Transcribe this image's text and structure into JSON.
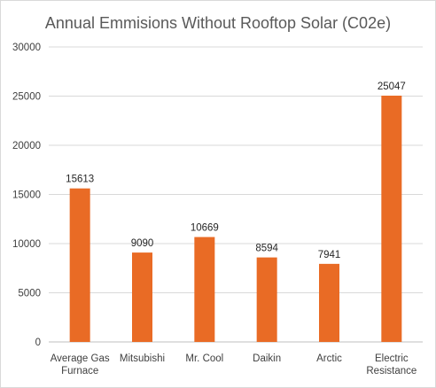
{
  "chart_data": {
    "type": "bar",
    "title": "Annual Emmisions Without Rooftop Solar (C02e)",
    "categories": [
      [
        "Average Gas",
        "Furnace"
      ],
      [
        "Mitsubishi"
      ],
      [
        "Mr. Cool"
      ],
      [
        "Daikin"
      ],
      [
        "Arctic"
      ],
      [
        "Electric",
        "Resistance"
      ]
    ],
    "values": [
      15613,
      9090,
      10669,
      8594,
      7941,
      25047
    ],
    "data_labels": [
      "15613",
      "9090",
      "10669",
      "8594",
      "7941",
      "25047"
    ],
    "ylim": [
      0,
      30000
    ],
    "yticks": [
      "0",
      "5000",
      "10000",
      "15000",
      "20000",
      "25000",
      "30000"
    ],
    "ytick_values": [
      0,
      5000,
      10000,
      15000,
      20000,
      25000,
      30000
    ],
    "grid": true,
    "legend": "none",
    "xlabel": "",
    "ylabel": "",
    "colors": {
      "bar": "#E96B25",
      "grid": "#d9d9d9",
      "axis": "#bfbfbf"
    }
  }
}
